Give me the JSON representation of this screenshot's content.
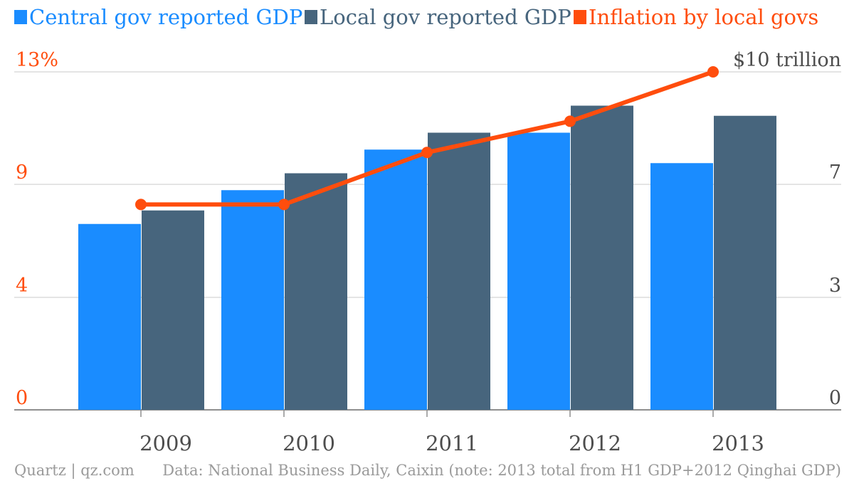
{
  "legend": [
    {
      "label": "Central gov reported GDP",
      "color": "#1a8cff"
    },
    {
      "label": "Local gov reported GDP",
      "color": "#47657d"
    },
    {
      "label": "Inflation by local govs",
      "color": "#ff4d0d"
    }
  ],
  "footer": {
    "source_left": "Quartz | qz.com",
    "source_right": "Data: National Business Daily, Caixin (note: 2013 total from H1 GDP+2012 Qinghai GDP)"
  },
  "chart_data": {
    "type": "bar",
    "categories": [
      "2009",
      "2010",
      "2011",
      "2012",
      "2013"
    ],
    "series": [
      {
        "name": "Central gov reported GDP",
        "axis": "right",
        "color": "#1a8cff",
        "values": [
          5.5,
          6.5,
          7.7,
          8.2,
          7.3
        ]
      },
      {
        "name": "Local gov reported GDP",
        "axis": "right",
        "color": "#47657d",
        "values": [
          5.9,
          7.0,
          8.2,
          9.0,
          8.7
        ]
      },
      {
        "name": "Inflation by local govs",
        "axis": "left",
        "type": "line",
        "color": "#ff4d0d",
        "values": [
          7.9,
          7.9,
          9.9,
          11.1,
          13.0
        ]
      }
    ],
    "y_left": {
      "ticks": [
        "0",
        "4",
        "9",
        "13%"
      ],
      "tick_values": [
        0,
        4.33,
        8.67,
        13
      ],
      "ylim": [
        0,
        13
      ],
      "color": "#ff4d0d"
    },
    "y_right": {
      "ticks": [
        "0",
        "3",
        "7",
        "$10 trillion"
      ],
      "tick_values": [
        0,
        3.33,
        6.67,
        10
      ],
      "ylim": [
        0,
        10
      ],
      "color": "#4d4d4d"
    },
    "grid": true,
    "legend_position": "top"
  }
}
